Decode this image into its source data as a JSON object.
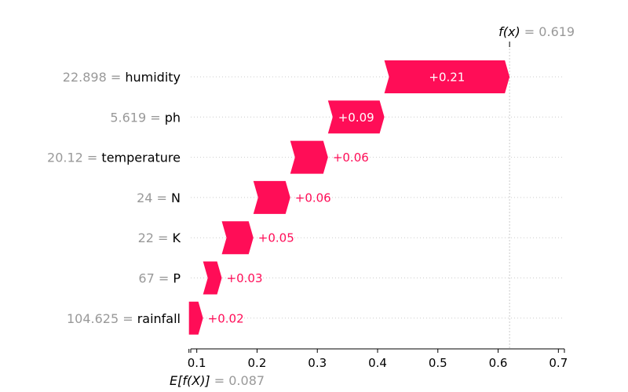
{
  "chart_data": {
    "type": "waterfall",
    "base_value": 0.087,
    "base_value_label": "0.087",
    "output_value": 0.619,
    "output_value_label": "0.619",
    "output_symbol": "f(x)",
    "base_symbol": "E[f(X)]",
    "xlim": [
      0.09,
      0.71
    ],
    "xticks": [
      0.1,
      0.2,
      0.3,
      0.4,
      0.5,
      0.6,
      0.7
    ],
    "xtick_labels": [
      "0.1",
      "0.2",
      "0.3",
      "0.4",
      "0.5",
      "0.6",
      "0.7"
    ],
    "features": [
      {
        "value": "22.898",
        "name": "humidity",
        "contribution": 0.2058,
        "label": "+0.21"
      },
      {
        "value": "5.619",
        "name": "ph",
        "contribution": 0.0935,
        "label": "+0.09"
      },
      {
        "value": "20.12",
        "name": "temperature",
        "contribution": 0.0626,
        "label": "+0.06"
      },
      {
        "value": "24",
        "name": "N",
        "contribution": 0.0612,
        "label": "+0.06"
      },
      {
        "value": "22",
        "name": "K",
        "contribution": 0.0524,
        "label": "+0.05"
      },
      {
        "value": "67",
        "name": "P",
        "contribution": 0.0311,
        "label": "+0.03"
      },
      {
        "value": "104.625",
        "name": "rainfall",
        "contribution": 0.0234,
        "label": "+0.02"
      }
    ],
    "colors": {
      "positive": "#ff0d57",
      "axis": "#000000",
      "guide": "#cccccc"
    }
  }
}
